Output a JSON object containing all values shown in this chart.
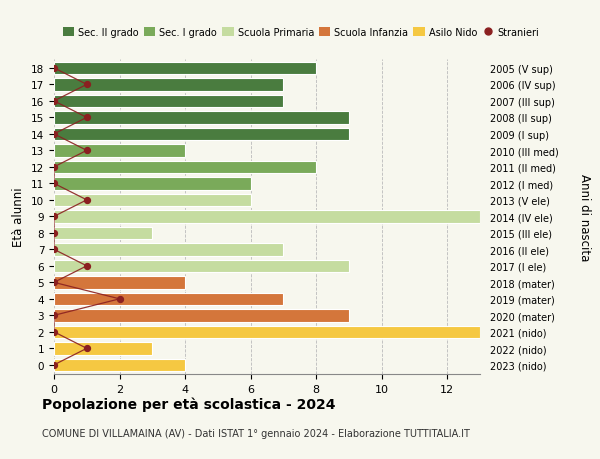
{
  "ages": [
    18,
    17,
    16,
    15,
    14,
    13,
    12,
    11,
    10,
    9,
    8,
    7,
    6,
    5,
    4,
    3,
    2,
    1,
    0
  ],
  "years": [
    "2005 (V sup)",
    "2006 (IV sup)",
    "2007 (III sup)",
    "2008 (II sup)",
    "2009 (I sup)",
    "2010 (III med)",
    "2011 (II med)",
    "2012 (I med)",
    "2013 (V ele)",
    "2014 (IV ele)",
    "2015 (III ele)",
    "2016 (II ele)",
    "2017 (I ele)",
    "2018 (mater)",
    "2019 (mater)",
    "2020 (mater)",
    "2021 (nido)",
    "2022 (nido)",
    "2023 (nido)"
  ],
  "bar_values": [
    8,
    7,
    7,
    9,
    9,
    4,
    8,
    6,
    6,
    13,
    3,
    7,
    9,
    4,
    7,
    9,
    13,
    3,
    4
  ],
  "bar_colors": [
    "#4a7c3f",
    "#4a7c3f",
    "#4a7c3f",
    "#4a7c3f",
    "#4a7c3f",
    "#7aaa5a",
    "#7aaa5a",
    "#7aaa5a",
    "#c5dca0",
    "#c5dca0",
    "#c5dca0",
    "#c5dca0",
    "#c5dca0",
    "#d4763b",
    "#d4763b",
    "#d4763b",
    "#f5c842",
    "#f5c842",
    "#f5c842"
  ],
  "stranieri": [
    0,
    1,
    0,
    1,
    0,
    1,
    0,
    0,
    1,
    0,
    0,
    0,
    1,
    0,
    2,
    0,
    0,
    1,
    0
  ],
  "title": "Popolazione per età scolastica - 2024",
  "subtitle": "COMUNE DI VILLAMAINA (AV) - Dati ISTAT 1° gennaio 2024 - Elaborazione TUTTITALIA.IT",
  "ylabel": "Età alunni",
  "y2label": "Anni di nascita",
  "xlim_max": 13,
  "xticks": [
    0,
    2,
    4,
    6,
    8,
    10,
    12
  ],
  "legend_labels": [
    "Sec. II grado",
    "Sec. I grado",
    "Scuola Primaria",
    "Scuola Infanzia",
    "Asilo Nido",
    "Stranieri"
  ],
  "legend_colors": [
    "#4a7c3f",
    "#7aaa5a",
    "#c5dca0",
    "#d4763b",
    "#f5c842",
    "#b22222"
  ],
  "stranieri_color": "#8b2020",
  "bg_color": "#f7f7ee",
  "bar_height": 0.75
}
